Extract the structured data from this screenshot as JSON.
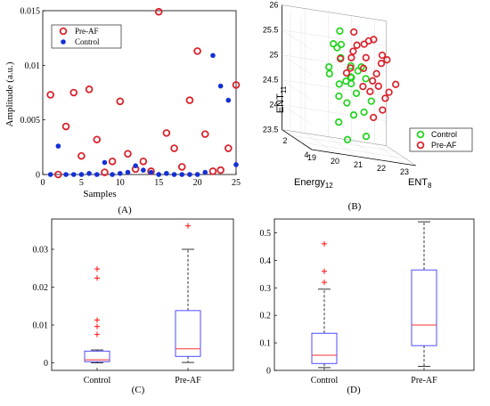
{
  "colors": {
    "pre_af": "#d9232d",
    "control_a": "#1330d6",
    "control_b": "#22d41e",
    "box": "#3b3bff",
    "median": "#ff3030",
    "outlier": "#ff2020"
  },
  "chart_data": [
    {
      "id": "A",
      "type": "scatter",
      "panel_label": "(A)",
      "xlabel": "Samples",
      "ylabel": "Amplitude (a.u.)",
      "xlim": [
        0,
        25
      ],
      "ylim": [
        0,
        0.015
      ],
      "xticks": [
        "0",
        "5",
        "10",
        "15",
        "20",
        "25"
      ],
      "yticks": [
        "0",
        "0.005",
        "0.01",
        "0.015"
      ],
      "legend_position": "top-left",
      "series": [
        {
          "name": "Pre-AF",
          "marker": "open-circle",
          "x": [
            1,
            2,
            3,
            4,
            5,
            6,
            7,
            8,
            9,
            10,
            11,
            12,
            13,
            14,
            15,
            16,
            17,
            18,
            19,
            20,
            21,
            22,
            23,
            24,
            25
          ],
          "y": [
            0.0073,
            0.0,
            0.0044,
            0.0075,
            0.0017,
            0.0078,
            0.0032,
            0.0002,
            0.0012,
            0.0067,
            0.0019,
            0.0005,
            0.0012,
            0.0003,
            0.0149,
            0.0038,
            0.0024,
            0.0007,
            0.0068,
            0.0113,
            0.0037,
            0.0003,
            0.0004,
            0.0024,
            0.0082
          ]
        },
        {
          "name": "Control",
          "marker": "filled-dot",
          "x": [
            1,
            2,
            3,
            4,
            5,
            6,
            7,
            8,
            9,
            10,
            11,
            12,
            13,
            14,
            15,
            16,
            17,
            18,
            19,
            20,
            21,
            22,
            23,
            24,
            25
          ],
          "y": [
            0.0,
            0.0026,
            0.0,
            0.0,
            0.0,
            0.0001,
            0.0,
            0.0011,
            0.0,
            0.0001,
            0.0002,
            0.0008,
            0.0004,
            0.0002,
            0.0,
            0.0001,
            0.0,
            0.0,
            0.0,
            0.0,
            0.0002,
            0.0109,
            0.0081,
            0.0068,
            0.0009
          ]
        }
      ]
    },
    {
      "id": "B",
      "type": "scatter",
      "panel_label": "(B)",
      "zlabel": "ENT",
      "zlabel_sub": "11",
      "xlabel": "ENT",
      "xlabel_sub": "8",
      "ylabel": "Energy",
      "ylabel_sub": "12",
      "zticks": [
        "23.5",
        "24",
        "24.5",
        "25",
        "25.5",
        "26"
      ],
      "xticks": [
        "19",
        "20",
        "21",
        "22",
        "23"
      ],
      "yticks": [
        "2",
        "4"
      ],
      "legend_position": "bottom-right",
      "series": [
        {
          "name": "Control",
          "marker": "open-circle",
          "points": [
            [
              20.3,
              3.2,
              25.6
            ],
            [
              20.6,
              2.9,
              25.5
            ],
            [
              20.9,
              2.5,
              25.8
            ],
            [
              20.2,
              3.0,
              25.1
            ],
            [
              20.8,
              2.8,
              25.3
            ],
            [
              21.1,
              3.1,
              25.2
            ],
            [
              20.5,
              2.4,
              24.9
            ],
            [
              21.0,
              3.3,
              25.0
            ],
            [
              21.3,
              2.7,
              24.8
            ],
            [
              20.4,
              3.5,
              24.6
            ],
            [
              21.5,
              2.9,
              25.1
            ],
            [
              20.7,
              3.6,
              24.5
            ],
            [
              21.2,
              3.4,
              24.7
            ],
            [
              21.6,
              3.0,
              25.2
            ],
            [
              20.9,
              3.8,
              24.3
            ],
            [
              21.4,
              2.5,
              24.9
            ],
            [
              20.6,
              3.1,
              24.8
            ],
            [
              21.7,
              3.2,
              25.0
            ],
            [
              20.3,
              3.7,
              24.1
            ],
            [
              21.1,
              2.2,
              25.5
            ],
            [
              21.8,
              3.5,
              24.6
            ],
            [
              21.0,
              3.0,
              23.7
            ],
            [
              21.9,
              2.8,
              23.8
            ],
            [
              20.8,
              3.3,
              24.9
            ],
            [
              21.3,
              3.9,
              24.4
            ]
          ]
        },
        {
          "name": "Pre-AF",
          "marker": "open-circle",
          "points": [
            [
              21.5,
              2.8,
              25.6
            ],
            [
              21.8,
              3.0,
              25.4
            ],
            [
              22.1,
              2.6,
              25.7
            ],
            [
              21.6,
              3.2,
              25.2
            ],
            [
              22.3,
              2.9,
              25.1
            ],
            [
              21.9,
              3.4,
              25.0
            ],
            [
              22.5,
              3.0,
              25.5
            ],
            [
              21.4,
              2.5,
              25.3
            ],
            [
              22.2,
              3.3,
              24.9
            ],
            [
              21.7,
              3.6,
              24.8
            ],
            [
              22.6,
              2.7,
              25.3
            ],
            [
              21.2,
              3.1,
              25.5
            ],
            [
              22.0,
              2.4,
              25.6
            ],
            [
              22.4,
              3.5,
              24.7
            ],
            [
              21.3,
              3.8,
              24.9
            ],
            [
              22.7,
              3.2,
              24.8
            ],
            [
              21.6,
              2.3,
              25.8
            ],
            [
              22.8,
              2.8,
              25.4
            ],
            [
              20.9,
              3.5,
              25.2
            ],
            [
              22.1,
              3.9,
              24.5
            ],
            [
              21.1,
              2.7,
              25.0
            ],
            [
              22.5,
              2.2,
              25.7
            ],
            [
              21.8,
              3.7,
              24.3
            ],
            [
              20.7,
              3.0,
              25.3
            ],
            [
              22.9,
              3.4,
              25.0
            ]
          ]
        }
      ]
    },
    {
      "id": "C",
      "type": "box",
      "panel_label": "(C)",
      "categories": [
        "Control",
        "Pre-AF"
      ],
      "ylim": [
        -0.002,
        0.038
      ],
      "yticks": [
        "0",
        "0.01",
        "0.02",
        "0.03"
      ],
      "boxes": [
        {
          "min": 0.0,
          "q1": 0.0003,
          "median": 0.0008,
          "q3": 0.0031,
          "max": 0.0034,
          "outliers": [
            0.0075,
            0.0096,
            0.0113,
            0.0224,
            0.0248
          ]
        },
        {
          "min": 0.0001,
          "q1": 0.0017,
          "median": 0.0037,
          "q3": 0.0138,
          "max": 0.03,
          "outliers": [
            0.0362
          ]
        }
      ]
    },
    {
      "id": "D",
      "type": "box",
      "panel_label": "(D)",
      "categories": [
        "Control",
        "Pre-AF"
      ],
      "ylim": [
        0,
        0.55
      ],
      "yticks": [
        "0",
        "0.1",
        "0.2",
        "0.3",
        "0.4",
        "0.5"
      ],
      "boxes": [
        {
          "min": 0.01,
          "q1": 0.025,
          "median": 0.055,
          "q3": 0.135,
          "max": 0.295,
          "outliers": [
            0.32,
            0.36,
            0.46
          ]
        },
        {
          "min": 0.015,
          "q1": 0.09,
          "median": 0.165,
          "q3": 0.365,
          "max": 0.54,
          "outliers": []
        }
      ]
    }
  ]
}
